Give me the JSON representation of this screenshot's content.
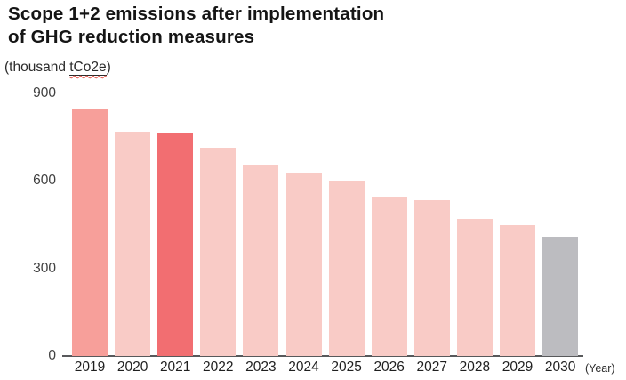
{
  "title": {
    "line1": "Scope 1+2 emissions after implementation",
    "line2": "of GHG reduction measures"
  },
  "unit_label": {
    "prefix": "(thousand ",
    "underlined": "tCo2e",
    "suffix": ")"
  },
  "axis": {
    "x_suffix_label": "(Year)",
    "y_ticks": [
      900,
      600,
      300,
      0
    ]
  },
  "chart_data": {
    "type": "bar",
    "title": "Scope 1+2 emissions after implementation of GHG reduction measures",
    "ylabel": "(thousand tCo2e)",
    "xlabel": "(Year)",
    "ylim": [
      0,
      900
    ],
    "y_tick_interval": 300,
    "grid": false,
    "legend": false,
    "categories": [
      "2019",
      "2020",
      "2021",
      "2022",
      "2023",
      "2024",
      "2025",
      "2026",
      "2027",
      "2028",
      "2029",
      "2030"
    ],
    "values": [
      845,
      770,
      765,
      715,
      655,
      630,
      600,
      545,
      535,
      470,
      450,
      410
    ],
    "bar_colors": [
      "#f79f9a",
      "#f9cbc6",
      "#f26e71",
      "#f9cbc6",
      "#f9cbc6",
      "#f9cbc6",
      "#f9cbc6",
      "#f9cbc6",
      "#f9cbc6",
      "#f9cbc6",
      "#f9cbc6",
      "#bcbcc0"
    ],
    "highlighted_category": "2021",
    "forecast_category": "2030"
  },
  "colors": {
    "default_bar": "#f9cbc6",
    "first_bar": "#f79f9a",
    "highlight_bar": "#f26e71",
    "forecast_bar": "#bcbcc0",
    "axis_line": "#58595b",
    "title_text": "#151515",
    "tick_text": "#404040",
    "spellcheck_underline": "#e8554a"
  }
}
